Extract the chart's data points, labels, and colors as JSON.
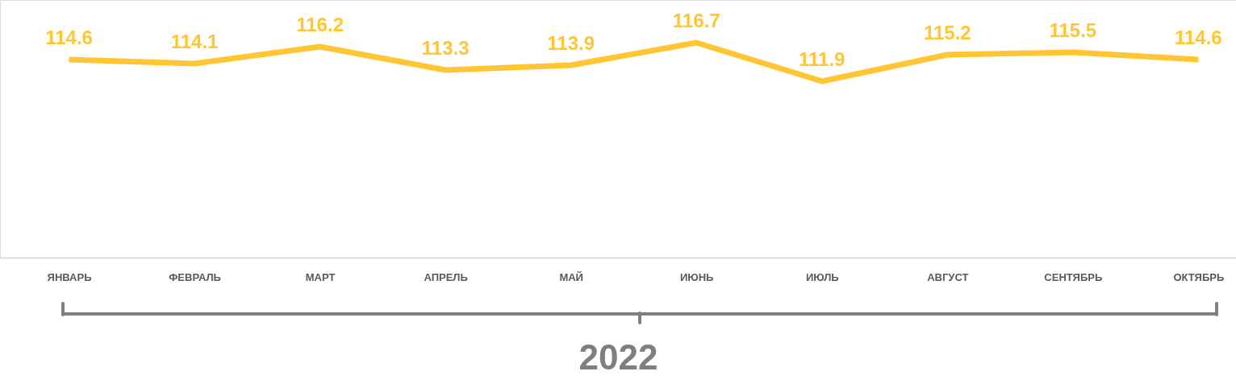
{
  "chart_data": {
    "type": "line",
    "xlabel": "2022",
    "categories": [
      "ЯНВАРЬ",
      "ФЕВРАЛЬ",
      "МАРТ",
      "АПРЕЛЬ",
      "МАЙ",
      "ИЮНЬ",
      "ИЮЛЬ",
      "АВГУСТ",
      "СЕНТЯБРЬ",
      "ОКТЯБРЬ"
    ],
    "values": [
      114.6,
      114.1,
      116.2,
      113.3,
      113.9,
      116.7,
      111.9,
      115.2,
      115.5,
      114.6
    ],
    "color": "#ffc533",
    "ylim": [
      90,
      122
    ],
    "data_labels": true,
    "tick_labels": "x",
    "grid": false,
    "marker": "none"
  }
}
